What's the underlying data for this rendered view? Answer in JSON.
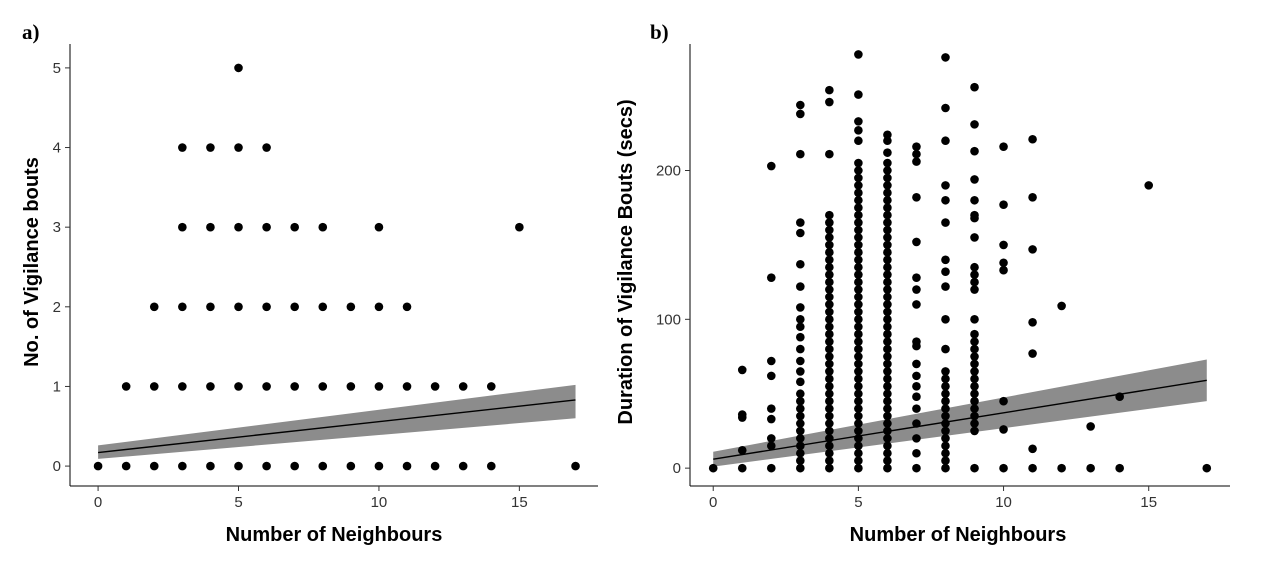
{
  "chart_data": [
    {
      "type": "scatter",
      "panel_label": "a)",
      "xlabel": "Number of Neighbours",
      "ylabel": "No. of Vigilance bouts",
      "xlim": [
        -1,
        17.8
      ],
      "ylim": [
        -0.25,
        5.3
      ],
      "xticks": [
        0,
        5,
        10,
        15
      ],
      "yticks": [
        0,
        1,
        2,
        3,
        4,
        5
      ],
      "grid": false,
      "points": [
        [
          0,
          0
        ],
        [
          1,
          0
        ],
        [
          2,
          0
        ],
        [
          3,
          0
        ],
        [
          4,
          0
        ],
        [
          5,
          0
        ],
        [
          6,
          0
        ],
        [
          7,
          0
        ],
        [
          8,
          0
        ],
        [
          9,
          0
        ],
        [
          10,
          0
        ],
        [
          11,
          0
        ],
        [
          12,
          0
        ],
        [
          13,
          0
        ],
        [
          14,
          0
        ],
        [
          17,
          0
        ],
        [
          1,
          1
        ],
        [
          2,
          1
        ],
        [
          3,
          1
        ],
        [
          4,
          1
        ],
        [
          5,
          1
        ],
        [
          6,
          1
        ],
        [
          7,
          1
        ],
        [
          8,
          1
        ],
        [
          9,
          1
        ],
        [
          10,
          1
        ],
        [
          11,
          1
        ],
        [
          12,
          1
        ],
        [
          13,
          1
        ],
        [
          14,
          1
        ],
        [
          2,
          2
        ],
        [
          3,
          2
        ],
        [
          4,
          2
        ],
        [
          5,
          2
        ],
        [
          6,
          2
        ],
        [
          7,
          2
        ],
        [
          8,
          2
        ],
        [
          9,
          2
        ],
        [
          10,
          2
        ],
        [
          11,
          2
        ],
        [
          3,
          3
        ],
        [
          4,
          3
        ],
        [
          5,
          3
        ],
        [
          6,
          3
        ],
        [
          7,
          3
        ],
        [
          8,
          3
        ],
        [
          10,
          3
        ],
        [
          15,
          3
        ],
        [
          3,
          4
        ],
        [
          4,
          4
        ],
        [
          5,
          4
        ],
        [
          6,
          4
        ],
        [
          5,
          5
        ]
      ],
      "fit": {
        "x": [
          0,
          17
        ],
        "y": [
          0.17,
          0.83
        ],
        "ci_lower": [
          0.09,
          0.6
        ],
        "ci_upper": [
          0.26,
          1.02
        ]
      }
    },
    {
      "type": "scatter",
      "panel_label": "b)",
      "xlabel": "Number of Neighbours",
      "ylabel": "Duration of Vigilance Bouts (secs)",
      "xlim": [
        -0.8,
        17.8
      ],
      "ylim": [
        -12,
        285
      ],
      "xticks": [
        0,
        5,
        10,
        15
      ],
      "yticks": [
        0,
        100,
        200
      ],
      "grid": false,
      "points": [
        [
          0,
          0
        ],
        [
          1,
          0
        ],
        [
          1,
          12
        ],
        [
          1,
          34
        ],
        [
          1,
          36
        ],
        [
          1,
          66
        ],
        [
          2,
          0
        ],
        [
          2,
          15
        ],
        [
          2,
          20
        ],
        [
          2,
          33
        ],
        [
          2,
          40
        ],
        [
          2,
          62
        ],
        [
          2,
          72
        ],
        [
          2,
          128
        ],
        [
          2,
          203
        ],
        [
          3,
          0
        ],
        [
          3,
          5
        ],
        [
          3,
          10
        ],
        [
          3,
          15
        ],
        [
          3,
          20
        ],
        [
          3,
          25
        ],
        [
          3,
          30
        ],
        [
          3,
          35
        ],
        [
          3,
          40
        ],
        [
          3,
          45
        ],
        [
          3,
          50
        ],
        [
          3,
          58
        ],
        [
          3,
          65
        ],
        [
          3,
          72
        ],
        [
          3,
          80
        ],
        [
          3,
          88
        ],
        [
          3,
          95
        ],
        [
          3,
          100
        ],
        [
          3,
          108
        ],
        [
          3,
          122
        ],
        [
          3,
          137
        ],
        [
          3,
          158
        ],
        [
          3,
          165
        ],
        [
          3,
          211
        ],
        [
          3,
          238
        ],
        [
          3,
          244
        ],
        [
          4,
          0
        ],
        [
          4,
          5
        ],
        [
          4,
          10
        ],
        [
          4,
          15
        ],
        [
          4,
          20
        ],
        [
          4,
          25
        ],
        [
          4,
          30
        ],
        [
          4,
          35
        ],
        [
          4,
          40
        ],
        [
          4,
          45
        ],
        [
          4,
          50
        ],
        [
          4,
          55
        ],
        [
          4,
          60
        ],
        [
          4,
          65
        ],
        [
          4,
          70
        ],
        [
          4,
          75
        ],
        [
          4,
          80
        ],
        [
          4,
          85
        ],
        [
          4,
          90
        ],
        [
          4,
          95
        ],
        [
          4,
          100
        ],
        [
          4,
          105
        ],
        [
          4,
          110
        ],
        [
          4,
          115
        ],
        [
          4,
          120
        ],
        [
          4,
          125
        ],
        [
          4,
          130
        ],
        [
          4,
          135
        ],
        [
          4,
          140
        ],
        [
          4,
          145
        ],
        [
          4,
          150
        ],
        [
          4,
          155
        ],
        [
          4,
          160
        ],
        [
          4,
          165
        ],
        [
          4,
          170
        ],
        [
          4,
          211
        ],
        [
          4,
          246
        ],
        [
          4,
          254
        ],
        [
          5,
          0
        ],
        [
          5,
          5
        ],
        [
          5,
          10
        ],
        [
          5,
          15
        ],
        [
          5,
          20
        ],
        [
          5,
          25
        ],
        [
          5,
          30
        ],
        [
          5,
          35
        ],
        [
          5,
          40
        ],
        [
          5,
          45
        ],
        [
          5,
          50
        ],
        [
          5,
          55
        ],
        [
          5,
          60
        ],
        [
          5,
          65
        ],
        [
          5,
          70
        ],
        [
          5,
          75
        ],
        [
          5,
          80
        ],
        [
          5,
          85
        ],
        [
          5,
          90
        ],
        [
          5,
          95
        ],
        [
          5,
          100
        ],
        [
          5,
          105
        ],
        [
          5,
          110
        ],
        [
          5,
          115
        ],
        [
          5,
          120
        ],
        [
          5,
          125
        ],
        [
          5,
          130
        ],
        [
          5,
          135
        ],
        [
          5,
          140
        ],
        [
          5,
          145
        ],
        [
          5,
          150
        ],
        [
          5,
          155
        ],
        [
          5,
          160
        ],
        [
          5,
          165
        ],
        [
          5,
          170
        ],
        [
          5,
          175
        ],
        [
          5,
          180
        ],
        [
          5,
          185
        ],
        [
          5,
          190
        ],
        [
          5,
          195
        ],
        [
          5,
          200
        ],
        [
          5,
          205
        ],
        [
          5,
          220
        ],
        [
          5,
          227
        ],
        [
          5,
          233
        ],
        [
          5,
          251
        ],
        [
          5,
          278
        ],
        [
          6,
          0
        ],
        [
          6,
          5
        ],
        [
          6,
          10
        ],
        [
          6,
          15
        ],
        [
          6,
          20
        ],
        [
          6,
          25
        ],
        [
          6,
          30
        ],
        [
          6,
          35
        ],
        [
          6,
          40
        ],
        [
          6,
          45
        ],
        [
          6,
          50
        ],
        [
          6,
          55
        ],
        [
          6,
          60
        ],
        [
          6,
          65
        ],
        [
          6,
          70
        ],
        [
          6,
          75
        ],
        [
          6,
          80
        ],
        [
          6,
          85
        ],
        [
          6,
          90
        ],
        [
          6,
          95
        ],
        [
          6,
          100
        ],
        [
          6,
          105
        ],
        [
          6,
          110
        ],
        [
          6,
          115
        ],
        [
          6,
          120
        ],
        [
          6,
          125
        ],
        [
          6,
          130
        ],
        [
          6,
          135
        ],
        [
          6,
          140
        ],
        [
          6,
          145
        ],
        [
          6,
          150
        ],
        [
          6,
          155
        ],
        [
          6,
          160
        ],
        [
          6,
          165
        ],
        [
          6,
          170
        ],
        [
          6,
          175
        ],
        [
          6,
          180
        ],
        [
          6,
          185
        ],
        [
          6,
          190
        ],
        [
          6,
          195
        ],
        [
          6,
          200
        ],
        [
          6,
          205
        ],
        [
          6,
          212
        ],
        [
          6,
          220
        ],
        [
          6,
          224
        ],
        [
          7,
          0
        ],
        [
          7,
          10
        ],
        [
          7,
          20
        ],
        [
          7,
          30
        ],
        [
          7,
          40
        ],
        [
          7,
          48
        ],
        [
          7,
          55
        ],
        [
          7,
          62
        ],
        [
          7,
          70
        ],
        [
          7,
          82
        ],
        [
          7,
          85
        ],
        [
          7,
          110
        ],
        [
          7,
          120
        ],
        [
          7,
          128
        ],
        [
          7,
          152
        ],
        [
          7,
          182
        ],
        [
          7,
          206
        ],
        [
          7,
          211
        ],
        [
          7,
          216
        ],
        [
          8,
          0
        ],
        [
          8,
          5
        ],
        [
          8,
          10
        ],
        [
          8,
          15
        ],
        [
          8,
          20
        ],
        [
          8,
          25
        ],
        [
          8,
          30
        ],
        [
          8,
          35
        ],
        [
          8,
          40
        ],
        [
          8,
          45
        ],
        [
          8,
          50
        ],
        [
          8,
          55
        ],
        [
          8,
          60
        ],
        [
          8,
          65
        ],
        [
          8,
          80
        ],
        [
          8,
          100
        ],
        [
          8,
          122
        ],
        [
          8,
          132
        ],
        [
          8,
          140
        ],
        [
          8,
          165
        ],
        [
          8,
          180
        ],
        [
          8,
          190
        ],
        [
          8,
          220
        ],
        [
          8,
          242
        ],
        [
          8,
          276
        ],
        [
          9,
          0
        ],
        [
          9,
          25
        ],
        [
          9,
          30
        ],
        [
          9,
          35
        ],
        [
          9,
          40
        ],
        [
          9,
          45
        ],
        [
          9,
          50
        ],
        [
          9,
          55
        ],
        [
          9,
          60
        ],
        [
          9,
          65
        ],
        [
          9,
          70
        ],
        [
          9,
          75
        ],
        [
          9,
          80
        ],
        [
          9,
          85
        ],
        [
          9,
          90
        ],
        [
          9,
          100
        ],
        [
          9,
          120
        ],
        [
          9,
          125
        ],
        [
          9,
          130
        ],
        [
          9,
          135
        ],
        [
          9,
          155
        ],
        [
          9,
          168
        ],
        [
          9,
          170
        ],
        [
          9,
          180
        ],
        [
          9,
          194
        ],
        [
          9,
          213
        ],
        [
          9,
          231
        ],
        [
          9,
          256
        ],
        [
          10,
          0
        ],
        [
          10,
          26
        ],
        [
          10,
          45
        ],
        [
          10,
          133
        ],
        [
          10,
          138
        ],
        [
          10,
          150
        ],
        [
          10,
          177
        ],
        [
          10,
          216
        ],
        [
          11,
          0
        ],
        [
          11,
          13
        ],
        [
          11,
          77
        ],
        [
          11,
          98
        ],
        [
          11,
          147
        ],
        [
          11,
          182
        ],
        [
          11,
          221
        ],
        [
          12,
          0
        ],
        [
          12,
          109
        ],
        [
          13,
          0
        ],
        [
          13,
          28
        ],
        [
          14,
          0
        ],
        [
          14,
          48
        ],
        [
          15,
          190
        ],
        [
          17,
          0
        ]
      ],
      "fit": {
        "x": [
          0,
          17
        ],
        "y": [
          6,
          59
        ],
        "ci_lower": [
          1,
          45
        ],
        "ci_upper": [
          11,
          73
        ]
      }
    }
  ]
}
